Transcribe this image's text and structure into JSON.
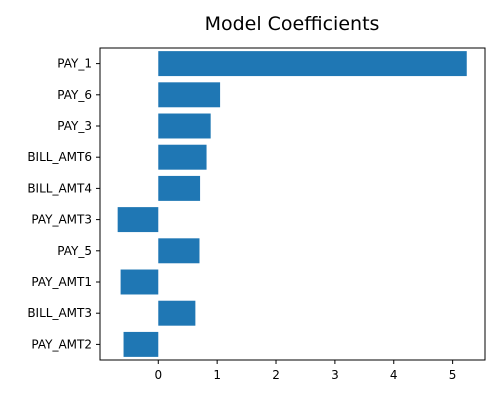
{
  "chart_data": {
    "type": "bar",
    "orientation": "horizontal",
    "title": "Model Coefficients",
    "xlabel": "",
    "ylabel": "",
    "categories": [
      "PAY_1",
      "PAY_6",
      "PAY_3",
      "BILL_AMT6",
      "BILL_AMT4",
      "PAY_AMT3",
      "PAY_5",
      "PAY_AMT1",
      "BILL_AMT3",
      "PAY_AMT2"
    ],
    "values": [
      5.24,
      1.05,
      0.89,
      0.82,
      0.71,
      -0.69,
      0.7,
      -0.64,
      0.63,
      -0.59
    ],
    "xlim": [
      -0.99,
      5.55
    ],
    "xticks": [
      0,
      1,
      2,
      3,
      4,
      5
    ],
    "bar_color": "#1f77b4",
    "grid": false,
    "legend": "none"
  }
}
